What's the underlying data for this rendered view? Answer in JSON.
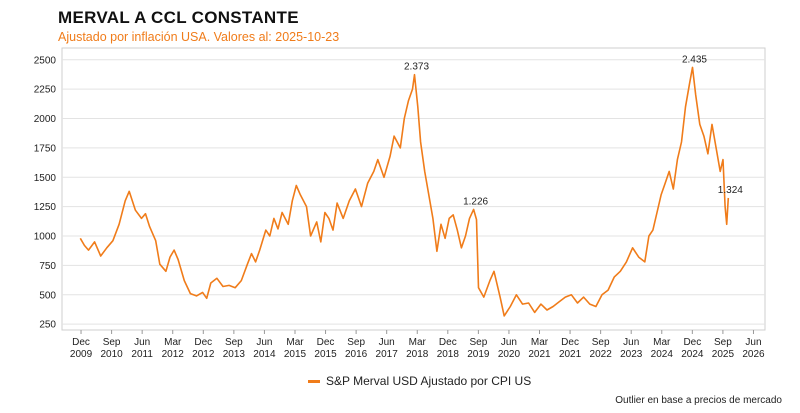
{
  "chart_data": {
    "type": "line",
    "title": "MERVAL A CCL CONSTANTE",
    "subtitle": "Ajustado por inflación USA. Valores al: 2025-10-23",
    "xlabel": "",
    "ylabel": "",
    "ylim": [
      200,
      2600
    ],
    "yticks": [
      250,
      500,
      750,
      1000,
      1250,
      1500,
      1750,
      2000,
      2250,
      2500
    ],
    "xticks": [
      {
        "line1": "Dec",
        "line2": "2009",
        "t": 2009.917
      },
      {
        "line1": "Sep",
        "line2": "2010",
        "t": 2010.667
      },
      {
        "line1": "Jun",
        "line2": "2011",
        "t": 2011.417
      },
      {
        "line1": "Mar",
        "line2": "2012",
        "t": 2012.167
      },
      {
        "line1": "Dec",
        "line2": "2012",
        "t": 2012.917
      },
      {
        "line1": "Sep",
        "line2": "2013",
        "t": 2013.667
      },
      {
        "line1": "Jun",
        "line2": "2014",
        "t": 2014.417
      },
      {
        "line1": "Mar",
        "line2": "2015",
        "t": 2015.167
      },
      {
        "line1": "Dec",
        "line2": "2015",
        "t": 2015.917
      },
      {
        "line1": "Sep",
        "line2": "2016",
        "t": 2016.667
      },
      {
        "line1": "Jun",
        "line2": "2017",
        "t": 2017.417
      },
      {
        "line1": "Mar",
        "line2": "2018",
        "t": 2018.167
      },
      {
        "line1": "Dec",
        "line2": "2018",
        "t": 2018.917
      },
      {
        "line1": "Sep",
        "line2": "2019",
        "t": 2019.667
      },
      {
        "line1": "Jun",
        "line2": "2020",
        "t": 2020.417
      },
      {
        "line1": "Mar",
        "line2": "2021",
        "t": 2021.167
      },
      {
        "line1": "Dec",
        "line2": "2021",
        "t": 2021.917
      },
      {
        "line1": "Sep",
        "line2": "2022",
        "t": 2022.667
      },
      {
        "line1": "Jun",
        "line2": "2023",
        "t": 2023.417
      },
      {
        "line1": "Mar",
        "line2": "2024",
        "t": 2024.167
      },
      {
        "line1": "Dec",
        "line2": "2024",
        "t": 2024.917
      },
      {
        "line1": "Sep",
        "line2": "2025",
        "t": 2025.667
      },
      {
        "line1": "Jun",
        "line2": "2026",
        "t": 2026.417
      }
    ],
    "xlim": [
      2009.45,
      2026.7
    ],
    "grid": true,
    "legend_position": "bottom-center",
    "series": [
      {
        "name": "S&P Merval USD Ajustado por CPI US",
        "color": "#f07c1a",
        "points": [
          [
            2009.9,
            980
          ],
          [
            2010.0,
            920
          ],
          [
            2010.1,
            880
          ],
          [
            2010.25,
            950
          ],
          [
            2010.4,
            830
          ],
          [
            2010.55,
            900
          ],
          [
            2010.7,
            960
          ],
          [
            2010.85,
            1100
          ],
          [
            2011.0,
            1300
          ],
          [
            2011.1,
            1380
          ],
          [
            2011.25,
            1220
          ],
          [
            2011.4,
            1150
          ],
          [
            2011.5,
            1190
          ],
          [
            2011.6,
            1080
          ],
          [
            2011.75,
            960
          ],
          [
            2011.85,
            760
          ],
          [
            2012.0,
            700
          ],
          [
            2012.1,
            820
          ],
          [
            2012.2,
            880
          ],
          [
            2012.3,
            800
          ],
          [
            2012.45,
            620
          ],
          [
            2012.6,
            510
          ],
          [
            2012.75,
            490
          ],
          [
            2012.9,
            520
          ],
          [
            2013.0,
            470
          ],
          [
            2013.1,
            600
          ],
          [
            2013.25,
            640
          ],
          [
            2013.4,
            570
          ],
          [
            2013.55,
            580
          ],
          [
            2013.7,
            560
          ],
          [
            2013.85,
            620
          ],
          [
            2014.0,
            760
          ],
          [
            2014.1,
            850
          ],
          [
            2014.2,
            780
          ],
          [
            2014.3,
            880
          ],
          [
            2014.45,
            1050
          ],
          [
            2014.55,
            1000
          ],
          [
            2014.65,
            1150
          ],
          [
            2014.75,
            1060
          ],
          [
            2014.85,
            1200
          ],
          [
            2015.0,
            1100
          ],
          [
            2015.1,
            1300
          ],
          [
            2015.2,
            1430
          ],
          [
            2015.3,
            1350
          ],
          [
            2015.45,
            1250
          ],
          [
            2015.55,
            1000
          ],
          [
            2015.7,
            1120
          ],
          [
            2015.8,
            950
          ],
          [
            2015.9,
            1200
          ],
          [
            2016.0,
            1150
          ],
          [
            2016.1,
            1050
          ],
          [
            2016.2,
            1280
          ],
          [
            2016.35,
            1150
          ],
          [
            2016.5,
            1300
          ],
          [
            2016.65,
            1400
          ],
          [
            2016.8,
            1250
          ],
          [
            2016.95,
            1450
          ],
          [
            2017.1,
            1550
          ],
          [
            2017.2,
            1650
          ],
          [
            2017.35,
            1500
          ],
          [
            2017.5,
            1680
          ],
          [
            2017.6,
            1850
          ],
          [
            2017.75,
            1750
          ],
          [
            2017.85,
            2000
          ],
          [
            2017.95,
            2150
          ],
          [
            2018.05,
            2250
          ],
          [
            2018.1,
            2373
          ],
          [
            2018.18,
            2100
          ],
          [
            2018.25,
            1800
          ],
          [
            2018.35,
            1550
          ],
          [
            2018.45,
            1350
          ],
          [
            2018.55,
            1150
          ],
          [
            2018.65,
            870
          ],
          [
            2018.75,
            1100
          ],
          [
            2018.85,
            980
          ],
          [
            2018.95,
            1150
          ],
          [
            2019.05,
            1180
          ],
          [
            2019.15,
            1050
          ],
          [
            2019.25,
            900
          ],
          [
            2019.35,
            1000
          ],
          [
            2019.45,
            1150
          ],
          [
            2019.55,
            1226
          ],
          [
            2019.62,
            1140
          ],
          [
            2019.67,
            560
          ],
          [
            2019.8,
            480
          ],
          [
            2019.95,
            620
          ],
          [
            2020.05,
            700
          ],
          [
            2020.2,
            480
          ],
          [
            2020.3,
            320
          ],
          [
            2020.45,
            400
          ],
          [
            2020.6,
            500
          ],
          [
            2020.75,
            420
          ],
          [
            2020.9,
            430
          ],
          [
            2021.05,
            350
          ],
          [
            2021.2,
            420
          ],
          [
            2021.35,
            370
          ],
          [
            2021.5,
            400
          ],
          [
            2021.65,
            440
          ],
          [
            2021.8,
            480
          ],
          [
            2021.95,
            500
          ],
          [
            2022.1,
            430
          ],
          [
            2022.25,
            480
          ],
          [
            2022.4,
            420
          ],
          [
            2022.55,
            400
          ],
          [
            2022.7,
            500
          ],
          [
            2022.85,
            540
          ],
          [
            2023.0,
            650
          ],
          [
            2023.15,
            700
          ],
          [
            2023.3,
            780
          ],
          [
            2023.45,
            900
          ],
          [
            2023.6,
            820
          ],
          [
            2023.75,
            780
          ],
          [
            2023.85,
            1000
          ],
          [
            2023.95,
            1050
          ],
          [
            2024.05,
            1200
          ],
          [
            2024.15,
            1350
          ],
          [
            2024.25,
            1450
          ],
          [
            2024.35,
            1550
          ],
          [
            2024.45,
            1400
          ],
          [
            2024.55,
            1650
          ],
          [
            2024.65,
            1800
          ],
          [
            2024.75,
            2100
          ],
          [
            2024.85,
            2300
          ],
          [
            2024.92,
            2435
          ],
          [
            2025.0,
            2200
          ],
          [
            2025.1,
            1950
          ],
          [
            2025.2,
            1850
          ],
          [
            2025.3,
            1700
          ],
          [
            2025.4,
            1950
          ],
          [
            2025.5,
            1750
          ],
          [
            2025.6,
            1550
          ],
          [
            2025.67,
            1650
          ],
          [
            2025.72,
            1250
          ],
          [
            2025.76,
            1100
          ],
          [
            2025.8,
            1324
          ]
        ],
        "annotations": [
          {
            "t": 2018.1,
            "v": 2373,
            "label": "2.373"
          },
          {
            "t": 2019.55,
            "v": 1226,
            "label": "1.226"
          },
          {
            "t": 2024.92,
            "v": 2435,
            "label": "2.435"
          },
          {
            "t": 2025.8,
            "v": 1324,
            "label": "1.324"
          }
        ]
      }
    ]
  },
  "footnote": "Outlier en base a precios de mercado"
}
